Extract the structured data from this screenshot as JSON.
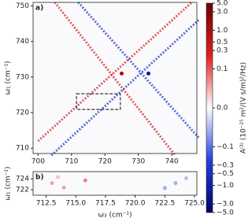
{
  "chart_data": [
    {
      "type": "heatmap",
      "panel_label": "a)",
      "ylabel": "ω₁ (cm⁻¹)",
      "xlim": [
        698.5,
        747.5
      ],
      "xticks": [
        700,
        710,
        720,
        730,
        740
      ],
      "ylim": [
        708.5,
        751
      ],
      "yticks": [
        710,
        720,
        730,
        740,
        750
      ],
      "series": [
        {
          "color": "#d62728",
          "x": [
            700,
            746
          ],
          "values": [
            712,
            751
          ]
        },
        {
          "color": "#1f3fbf",
          "x": [
            704,
            748
          ],
          "values": [
            708,
            746
          ]
        },
        {
          "color": "#1f3fbf",
          "x": [
            712,
            748
          ],
          "values": [
            751,
            713
          ]
        },
        {
          "color": "#d62728",
          "x": [
            705,
            741
          ],
          "values": [
            751,
            708
          ]
        }
      ],
      "points": {
        "x": [
          725,
          733
        ],
        "values": [
          731,
          731
        ],
        "colors": [
          "#c00000",
          "#0020a0"
        ]
      },
      "zoom_box": {
        "x": [
          711.5,
          724.6
        ],
        "y": [
          720.9,
          725.3
        ]
      },
      "colorbar": {
        "label": "A⁽³⁾ (10⁻²⁵ m²/(V s/m)²/Hz)",
        "lim": [
          -5,
          5
        ],
        "ticks": [
          {
            "value": 5,
            "label": "5.0"
          },
          {
            "value": 3,
            "label": "3.0"
          },
          {
            "value": 1,
            "label": "1.0"
          },
          0.5,
          0.3,
          0.1,
          {
            "value": 0,
            "label": "0.0"
          },
          {
            "value": -0.1,
            "label": "−0.1"
          },
          {
            "value": -0.3,
            "label": "−0.3"
          },
          {
            "value": -0.5,
            "label": "−0.5"
          },
          {
            "value": -1,
            "label": "−1.0"
          },
          {
            "value": -3,
            "label": "−3.0"
          },
          {
            "value": -5,
            "label": "−5.0"
          }
        ]
      }
    },
    {
      "type": "heatmap",
      "panel_label": "b)",
      "ylabel": "ω₁ (cm⁻¹)",
      "xlabel": "ω₃ (cm⁻¹)",
      "xlim": [
        711.4,
        725.2
      ],
      "xticks": [
        712.5,
        {
          "value": 715,
          "label": "715.0"
        },
        717.5,
        {
          "value": 720,
          "label": "720.0"
        },
        722.5,
        {
          "value": 725,
          "label": "725.0"
        }
      ],
      "ylim": [
        721,
        725.3
      ],
      "yticks": [
        722,
        724
      ],
      "series": [],
      "points": {
        "x": [
          713,
          714,
          715.8,
          713.5,
          722.5,
          723.4,
          724.3
        ],
        "values": [
          723.2,
          722.4,
          723.7,
          724.3,
          722.3,
          723.2,
          724.1
        ],
        "colors": [
          "#f4a0a0",
          "#f4a0a0",
          "#f08080",
          "#f8c0c0",
          "#9fb0e8",
          "#9fb0e8",
          "#b0c0f0"
        ]
      }
    }
  ]
}
